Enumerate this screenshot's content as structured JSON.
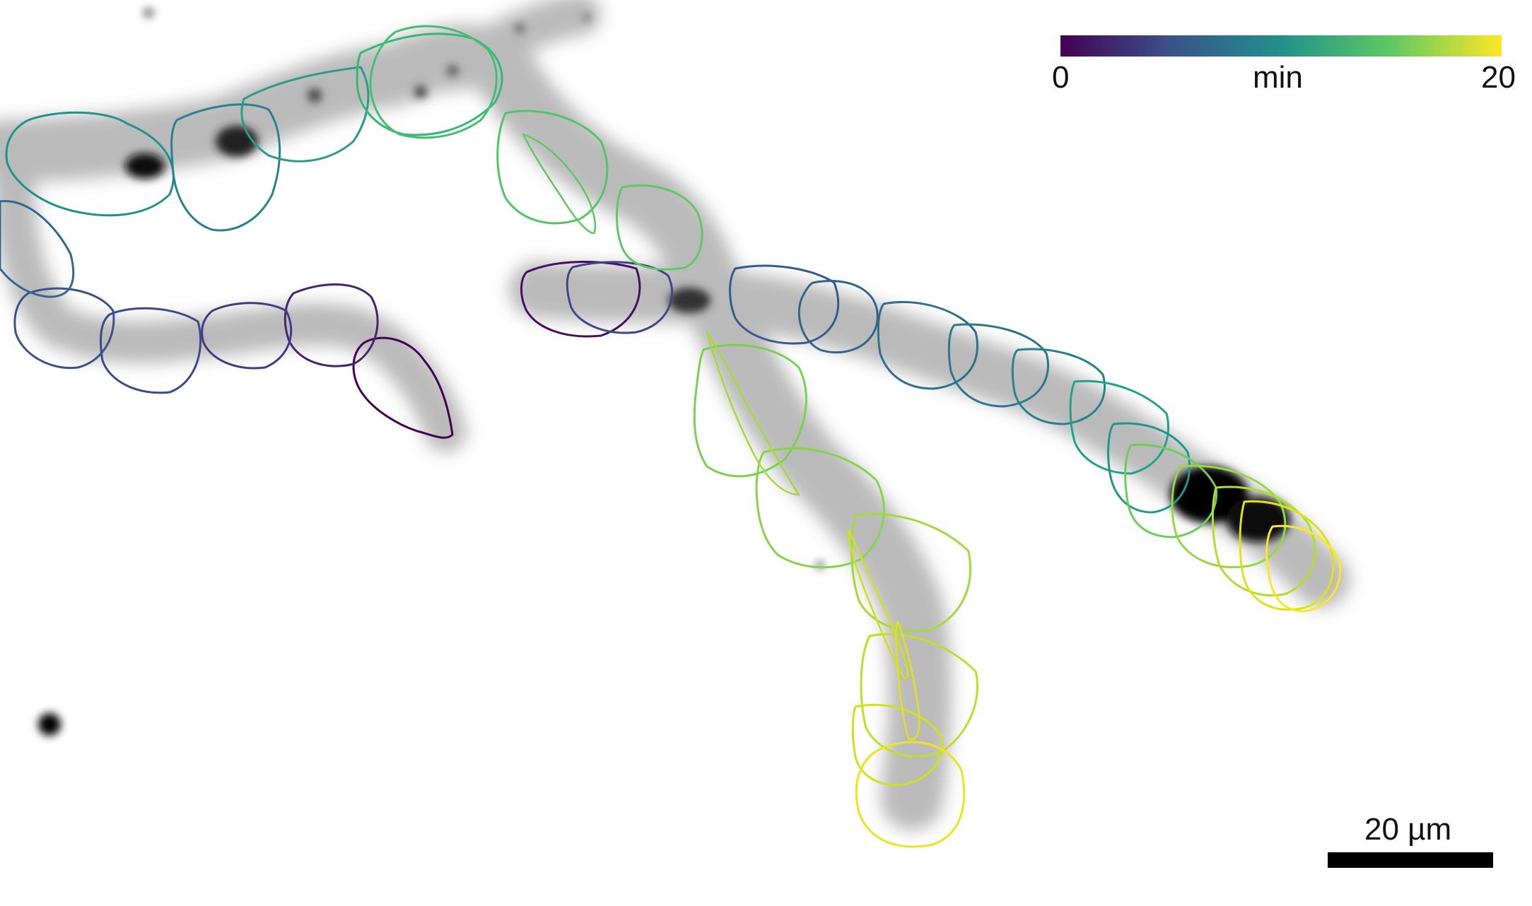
{
  "colorbar": {
    "min_label": "0",
    "unit_label": "min",
    "max_label": "20",
    "colormap": "viridis",
    "colors": [
      "#440154",
      "#3b528b",
      "#21918c",
      "#5ec962",
      "#fde725"
    ]
  },
  "scale_bar": {
    "label": "20 µm"
  },
  "image": {
    "style": "inverted grayscale microscopy with time-colored cell outlines",
    "background_color": "#ffffff",
    "cell_color": "#3a3a3a"
  }
}
